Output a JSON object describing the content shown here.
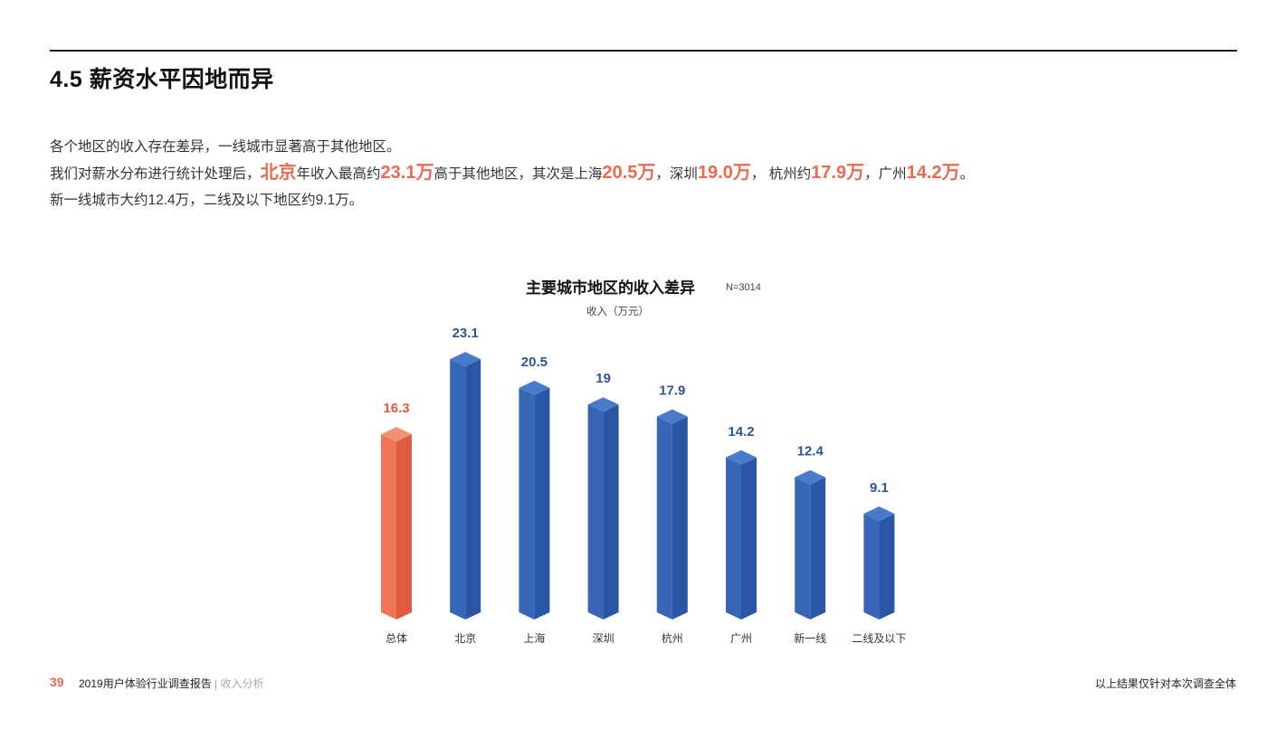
{
  "page": {
    "title": "4.5 薪资水平因地而异",
    "intro": {
      "line1": "各个地区的收入存在差异，一线城市显著高于其他地区。",
      "line2": {
        "p1": "我们对薪水分布进行统计处理后，",
        "h1": "北京",
        "p2": "年收入最高约",
        "h2": "23.1万",
        "p3": "高于其他地区，其次是上海",
        "h3": "20.5万",
        "p4": "，深圳",
        "h4": "19.0万",
        "p5": "， 杭州约",
        "h5": "17.9万",
        "p6": "，广州",
        "h6": "14.2万",
        "p7": "。"
      },
      "line3": "新一线城市大约12.4万，二线及以下地区约9.1万。"
    },
    "footer": {
      "page_number": "39",
      "report_title": "2019用户体验行业调查报告",
      "separator": "|",
      "section": "收入分析",
      "note": "以上结果仅针对本次调查全体"
    },
    "colors": {
      "accent": "#ea6a4f",
      "bar_blue": "#3566b8",
      "bar_orange": "#f07457"
    }
  },
  "chart_data": {
    "type": "bar",
    "title": "主要城市地区的收入差异",
    "sample_size": "N=3014",
    "ylabel": "收入（万元）",
    "xlabel": "",
    "categories": [
      "总体",
      "北京",
      "上海",
      "深圳",
      "杭州",
      "广州",
      "新一线",
      "二线及以下"
    ],
    "values": [
      16.3,
      23.1,
      20.5,
      19,
      17.9,
      14.2,
      12.4,
      9.1
    ],
    "value_labels": [
      "16.3",
      "23.1",
      "20.5",
      "19",
      "17.9",
      "14.2",
      "12.4",
      "9.1"
    ],
    "highlight_index": 0,
    "grid": false,
    "legend": "none",
    "style": "3d isometric columns"
  }
}
